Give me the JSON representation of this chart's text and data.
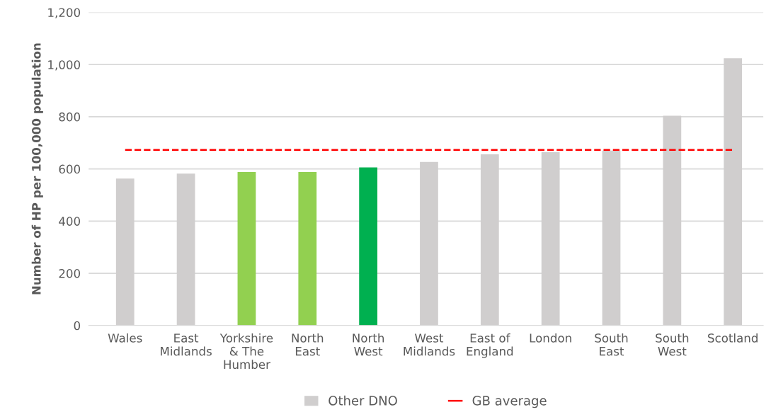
{
  "chart_data": {
    "type": "bar",
    "ylabel": "Number of HP per 100,000 population",
    "categories": [
      "Wales",
      "East\nMidlands",
      "Yorkshire\n& The\nHumber",
      "North\nEast",
      "North\nWest",
      "West\nMidlands",
      "East of\nEngland",
      "London",
      "South\nEast",
      "South\nWest",
      "Scotland"
    ],
    "series": [
      {
        "color": "#00b050",
        "values": [
          null,
          null,
          null,
          null,
          606,
          null,
          null,
          null,
          null,
          null,
          null
        ]
      },
      {
        "color": "#92d050",
        "values": [
          null,
          null,
          588,
          588,
          null,
          null,
          null,
          null,
          null,
          null,
          null
        ]
      },
      {
        "name": "Other DNO",
        "color": "#d0cece",
        "values": [
          563,
          582,
          null,
          null,
          null,
          627,
          656,
          664,
          670,
          804,
          1024
        ]
      }
    ],
    "ref_lines": [
      {
        "axis": "y",
        "value": 673,
        "label": "GB average",
        "color": "#ff0000",
        "line_style": "dashed"
      }
    ],
    "ylim": [
      0,
      1200
    ],
    "yticks": [
      {
        "value": 0,
        "label": "0"
      },
      {
        "value": 200,
        "label": "200"
      },
      {
        "value": 400,
        "label": "400"
      },
      {
        "value": 600,
        "label": "600"
      },
      {
        "value": 800,
        "label": "800"
      },
      {
        "value": 1000,
        "label": "1,000"
      },
      {
        "value": 1200,
        "label": "1,200"
      }
    ],
    "grid": "y",
    "legend": "bottom"
  }
}
